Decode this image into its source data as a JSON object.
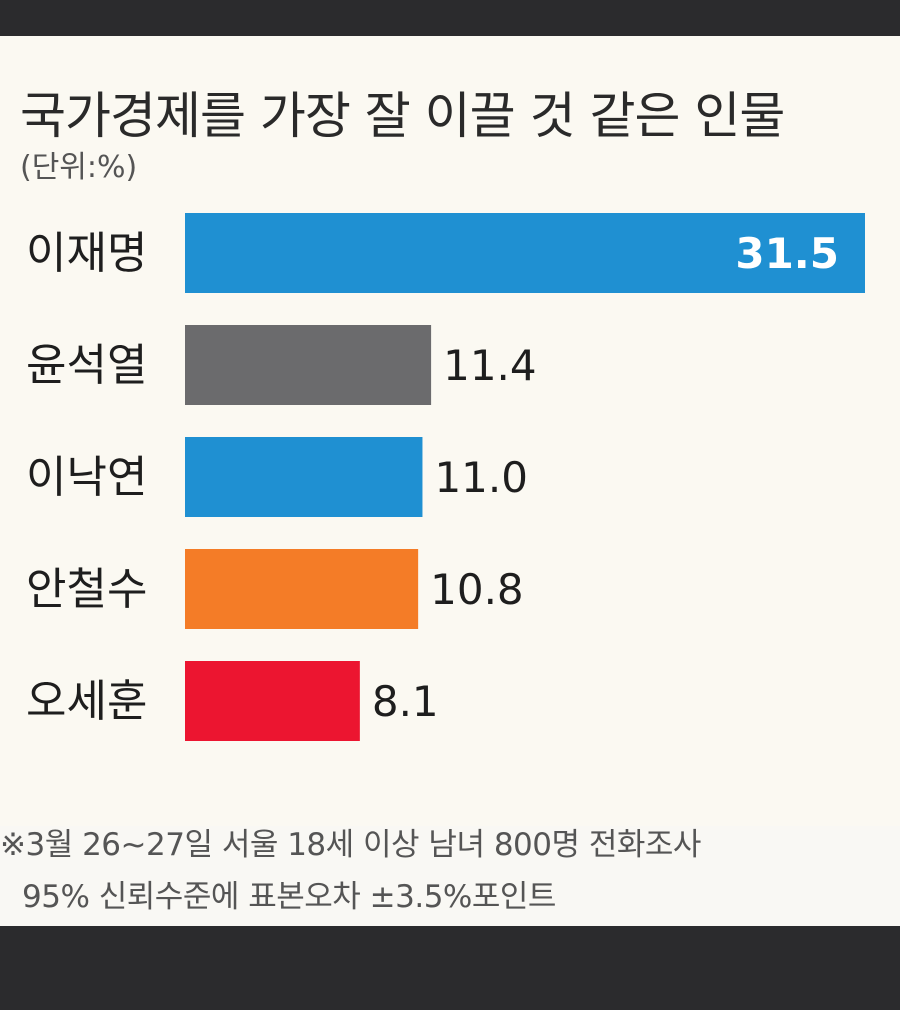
{
  "chart_data": {
    "type": "bar",
    "orientation": "horizontal",
    "title": "국가경제를 가장 잘 이끌 것 같은 인물",
    "unit_label": "(단위:%)",
    "categories": [
      "이재명",
      "윤석열",
      "이낙연",
      "안철수",
      "오세훈"
    ],
    "values": [
      31.5,
      11.4,
      11.0,
      10.8,
      8.1
    ],
    "value_labels": [
      "31.5",
      "11.4",
      "11.0",
      "10.8",
      "8.1"
    ],
    "colors": [
      "#1f90d2",
      "#6b6b6d",
      "#1f90d2",
      "#f47c27",
      "#ec1530"
    ],
    "xlim": [
      0,
      31.5
    ],
    "grid": false
  },
  "footnote": {
    "line1": "※3월 26~27일 서울 18세 이상 남녀 800명 전화조사",
    "line2": "95% 신뢰수준에 표본오차 ±3.5%포인트"
  }
}
